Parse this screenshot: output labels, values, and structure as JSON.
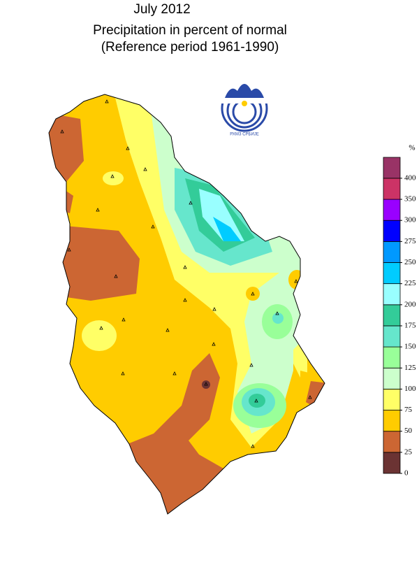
{
  "header": {
    "lines": [
      "July 2012",
      "Precipitation in percent of normal",
      "(Reference period 1961-1990)"
    ]
  },
  "logo": {
    "text": "РХМЗ СРБИЈЕ"
  },
  "legend": {
    "unit": "%",
    "ticks": [
      0,
      25,
      50,
      75,
      100,
      125,
      150,
      175,
      200,
      225,
      250,
      275,
      300,
      350,
      400
    ],
    "colors": [
      "#6b3333",
      "#cc6633",
      "#ffcc00",
      "#ffff66",
      "#ccffcc",
      "#99ff99",
      "#66e6cc",
      "#33cc99",
      "#99ffff",
      "#00ccff",
      "#0099ff",
      "#0000ff",
      "#9900ff",
      "#cc3366",
      "#993366"
    ]
  }
}
